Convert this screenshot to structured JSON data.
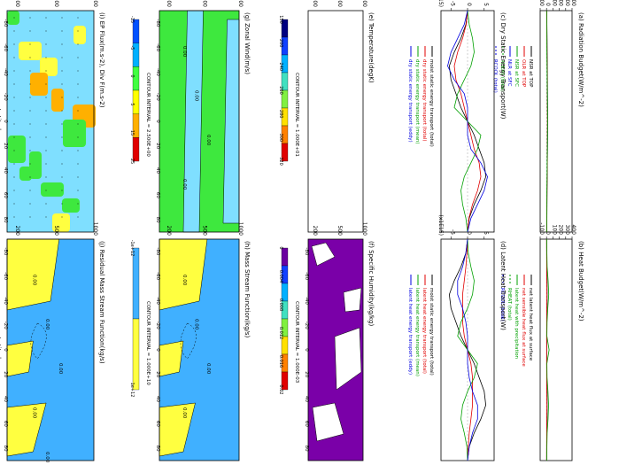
{
  "figure": {
    "orientation": "rotated-90-clockwise",
    "latitude_axis_label": "Latitude",
    "latitude_ticks": [
      "-80",
      "-60",
      "-40",
      "-20",
      "0",
      "20",
      "40",
      "60",
      "80"
    ],
    "pressure_ticks": [
      "1000",
      "500",
      "200"
    ]
  },
  "chart_data": [
    {
      "id": "a",
      "type": "line",
      "title": "(a) Radiation Budget(W/m^-2)",
      "ylim": [
        -100,
        400
      ],
      "yticks": [
        "-100",
        "0",
        "100",
        "200",
        "300",
        "400"
      ],
      "legend": [
        {
          "label": "NSR at TOP",
          "color": "#000000",
          "dash": "solid"
        },
        {
          "label": "OLR at TOP",
          "color": "#e00000",
          "dash": "solid"
        },
        {
          "label": "NSR at SFC",
          "color": "#00a000",
          "dash": "solid"
        },
        {
          "label": "NLR at SFC",
          "color": "#0000e0",
          "dash": "solid"
        },
        {
          "label": "RHEAT (total)",
          "color": "#00a000",
          "dash": "dotted"
        },
        {
          "label": "RCOOL (total)",
          "color": "#0000e0",
          "dash": "dotted"
        }
      ],
      "series": [
        {
          "name": "NSR at TOP",
          "values": [
            5,
            6,
            8,
            10,
            12,
            14,
            15,
            16,
            17,
            16,
            15,
            13,
            11,
            9,
            7,
            6,
            5
          ]
        },
        {
          "name": "OLR at TOP",
          "values": [
            3,
            4,
            5,
            7,
            9,
            11,
            12,
            13,
            14,
            13,
            12,
            11,
            9,
            7,
            5,
            4,
            3
          ]
        },
        {
          "name": "NSR at SFC",
          "values": [
            2,
            3,
            4,
            6,
            8,
            10,
            12,
            14,
            15,
            14,
            12,
            10,
            8,
            6,
            4,
            3,
            2
          ]
        }
      ]
    },
    {
      "id": "b",
      "type": "line",
      "title": "(b) Heat Budget(W/m^-2)",
      "ylim": [
        -100,
        400
      ],
      "yticks": [
        "-100",
        "0",
        "100",
        "200",
        "300",
        "400"
      ],
      "legend": [
        {
          "label": "net latent heat flux at surface",
          "color": "#000000",
          "dash": "solid"
        },
        {
          "label": "net sensible heat flux at surface",
          "color": "#e00000",
          "dash": "solid"
        },
        {
          "label": "latent heat with precipitation",
          "color": "#00a000",
          "dash": "solid"
        },
        {
          "label": "RHEAT (total)",
          "color": "#00a000",
          "dash": "dotted"
        },
        {
          "label": "RCOOL (total)",
          "color": "#0000e0",
          "dash": "dotted"
        }
      ],
      "series": [
        {
          "name": "net latent heat flux at surface",
          "values": [
            2,
            3,
            5,
            8,
            10,
            9,
            6,
            4,
            3,
            4,
            6,
            9,
            10,
            8,
            5,
            3,
            2
          ]
        },
        {
          "name": "net sensible heat flux at surface",
          "values": [
            1,
            2,
            3,
            4,
            5,
            4,
            3,
            2,
            2,
            2,
            3,
            4,
            5,
            4,
            3,
            2,
            1
          ]
        },
        {
          "name": "latent heat with precipitation",
          "values": [
            3,
            5,
            10,
            25,
            35,
            20,
            8,
            5,
            40,
            6,
            8,
            22,
            32,
            24,
            10,
            5,
            3
          ]
        }
      ]
    },
    {
      "id": "c",
      "type": "line",
      "title": "(c) Dry Static Energy Transport(W)",
      "scale_label": "(x1E15)",
      "ylim": [
        -8,
        8
      ],
      "yticks": [
        "-5",
        "0",
        "5"
      ],
      "legend": [
        {
          "label": "moist static energy transport (total)",
          "color": "#000000"
        },
        {
          "label": "dry static energy transport (total)",
          "color": "#e00000"
        },
        {
          "label": "dry static energy transport (mean)",
          "color": "#00a000"
        },
        {
          "label": "dry static energy transport (eddy)",
          "color": "#0000e0"
        }
      ],
      "series": [
        {
          "name": "moist static energy transport (total)",
          "values": [
            0,
            -0.5,
            -2,
            -4,
            -5.5,
            -5,
            -3.5,
            -2,
            0,
            2,
            3.5,
            5,
            5.5,
            4,
            2,
            0.5,
            0
          ]
        },
        {
          "name": "dry static energy transport (total)",
          "values": [
            0,
            -0.4,
            -1.5,
            -3,
            -4,
            -3.5,
            -2,
            -1,
            0,
            1,
            2,
            3.5,
            4,
            3,
            1.5,
            0.4,
            0
          ]
        },
        {
          "name": "dry static energy transport (mean)",
          "values": [
            0,
            0.5,
            1.5,
            2,
            1,
            -1,
            -3,
            -4,
            0,
            4,
            3,
            1,
            -1,
            -2,
            -1.5,
            -0.5,
            0
          ]
        },
        {
          "name": "dry static energy transport (eddy)",
          "values": [
            0,
            -1,
            -3,
            -5,
            -6,
            -4,
            -1,
            0,
            0,
            0,
            1,
            4,
            6,
            5,
            3,
            1,
            0
          ]
        }
      ]
    },
    {
      "id": "d",
      "type": "line",
      "title": "(d) Latent Heat Transport(W)",
      "scale_label": "(x1E15)",
      "ylim": [
        -8,
        8
      ],
      "yticks": [
        "-5",
        "0",
        "5"
      ],
      "legend": [
        {
          "label": "moist static energy transport (total)",
          "color": "#000000"
        },
        {
          "label": "latent heat energy transport (total)",
          "color": "#e00000"
        },
        {
          "label": "latent heat energy transport (mean)",
          "color": "#00a000"
        },
        {
          "label": "latent heat energy transport (eddy)",
          "color": "#0000e0"
        }
      ],
      "series": [
        {
          "name": "moist static energy transport (total)",
          "values": [
            0,
            -0.5,
            -2,
            -4,
            -5.5,
            -5,
            -3.5,
            -2,
            0,
            2,
            3.5,
            5,
            5.5,
            4,
            2,
            0.5,
            0
          ]
        },
        {
          "name": "latent heat energy transport (total)",
          "values": [
            0,
            -0.2,
            -0.5,
            -1,
            -1.5,
            -1.5,
            -1.5,
            -1,
            0,
            1,
            1.5,
            1.5,
            1.5,
            1,
            0.5,
            0.2,
            0
          ]
        },
        {
          "name": "latent heat energy transport (mean)",
          "values": [
            0,
            0.2,
            1,
            2,
            1.5,
            0,
            -2,
            -3,
            0,
            3,
            2,
            0,
            -1.5,
            -2,
            -1,
            -0.2,
            0
          ]
        },
        {
          "name": "latent heat energy transport (eddy)",
          "values": [
            0,
            -0.5,
            -1.5,
            -3,
            -3,
            -1.5,
            -0.5,
            0,
            0,
            0,
            0.5,
            1.5,
            3,
            3,
            1.5,
            0.5,
            0
          ]
        }
      ]
    },
    {
      "id": "e",
      "type": "heatmap",
      "title": "(e) Temperature(degK)",
      "contour_interval": "CONTOUR INTERVAL = 1.000E+01",
      "colorbar": {
        "ticks": [
          "150",
          "200",
          "240",
          "260",
          "280",
          "300",
          "320"
        ],
        "colors": [
          "#000080",
          "#1040ff",
          "#00b0ff",
          "#40e0c0",
          "#80f040",
          "#ffe000",
          "#ff8000",
          "#e00000"
        ]
      }
    },
    {
      "id": "f",
      "type": "heatmap",
      "title": "(f) Specific Humidity(kg/kg)",
      "contour_interval": "CONTOUR INTERVAL = 1.000E-03",
      "colorbar": {
        "ticks": [
          "0",
          "0.004",
          "0.008",
          "0.012",
          "0.016",
          "0.02"
        ],
        "colors": [
          "#6a00a0",
          "#1040ff",
          "#00b0ff",
          "#40e0c0",
          "#80f040",
          "#ffe000",
          "#ff8000",
          "#e00000"
        ]
      }
    },
    {
      "id": "g",
      "type": "heatmap",
      "title": "(g) Zonal Wind(m/s)",
      "contour_interval": "CONTOUR INTERVAL = 2.500E+00",
      "contour_labels": [
        "0.00",
        "0.00",
        "0.00",
        "0.00"
      ],
      "colorbar": {
        "ticks": [
          "-15",
          "-5",
          "0",
          "5",
          "15",
          "25"
        ],
        "colors": [
          "#0050ff",
          "#00b0ff",
          "#40ff40",
          "#ffff00",
          "#ffb000",
          "#e00000"
        ]
      }
    },
    {
      "id": "h",
      "type": "heatmap",
      "title": "(h) Mass Stream Function(kg/s)",
      "contour_interval": "CONTOUR INTERVAL = 1.000E+10",
      "contour_labels": [
        "0.00",
        "0.00",
        "0.00",
        "0.00"
      ],
      "colorbar": {
        "ticks": [
          "-1e+12",
          "1e+12"
        ],
        "colors": [
          "#40b0ff",
          "#ffff40"
        ]
      }
    },
    {
      "id": "i",
      "type": "heatmap",
      "title": "(i) EP Flux(m.s-2), Div F(m.s-2)",
      "vector_scale": "6.3e+06",
      "vector_scale_2": "8.3e+09",
      "colorbar": {
        "ticks": [
          "-5e-5",
          "-1e-5",
          "0",
          "1e-5",
          "5e-5"
        ],
        "colors": [
          "#0050ff",
          "#00b0ff",
          "#40ff40",
          "#ffff00",
          "#ffb000",
          "#e00000"
        ]
      }
    },
    {
      "id": "j",
      "type": "heatmap",
      "title": "(j) Residual Mass Stream Function(kg/s)",
      "contour_interval": "CONTOUR INTERVAL = 1.000E+10",
      "contour_labels": [
        "0.00",
        "0.00",
        "0.00",
        "0.00",
        "0.00"
      ],
      "colorbar": {
        "ticks": [
          "-1e+12",
          "1e+12"
        ],
        "colors": [
          "#40b0ff",
          "#ffff40"
        ]
      }
    }
  ]
}
